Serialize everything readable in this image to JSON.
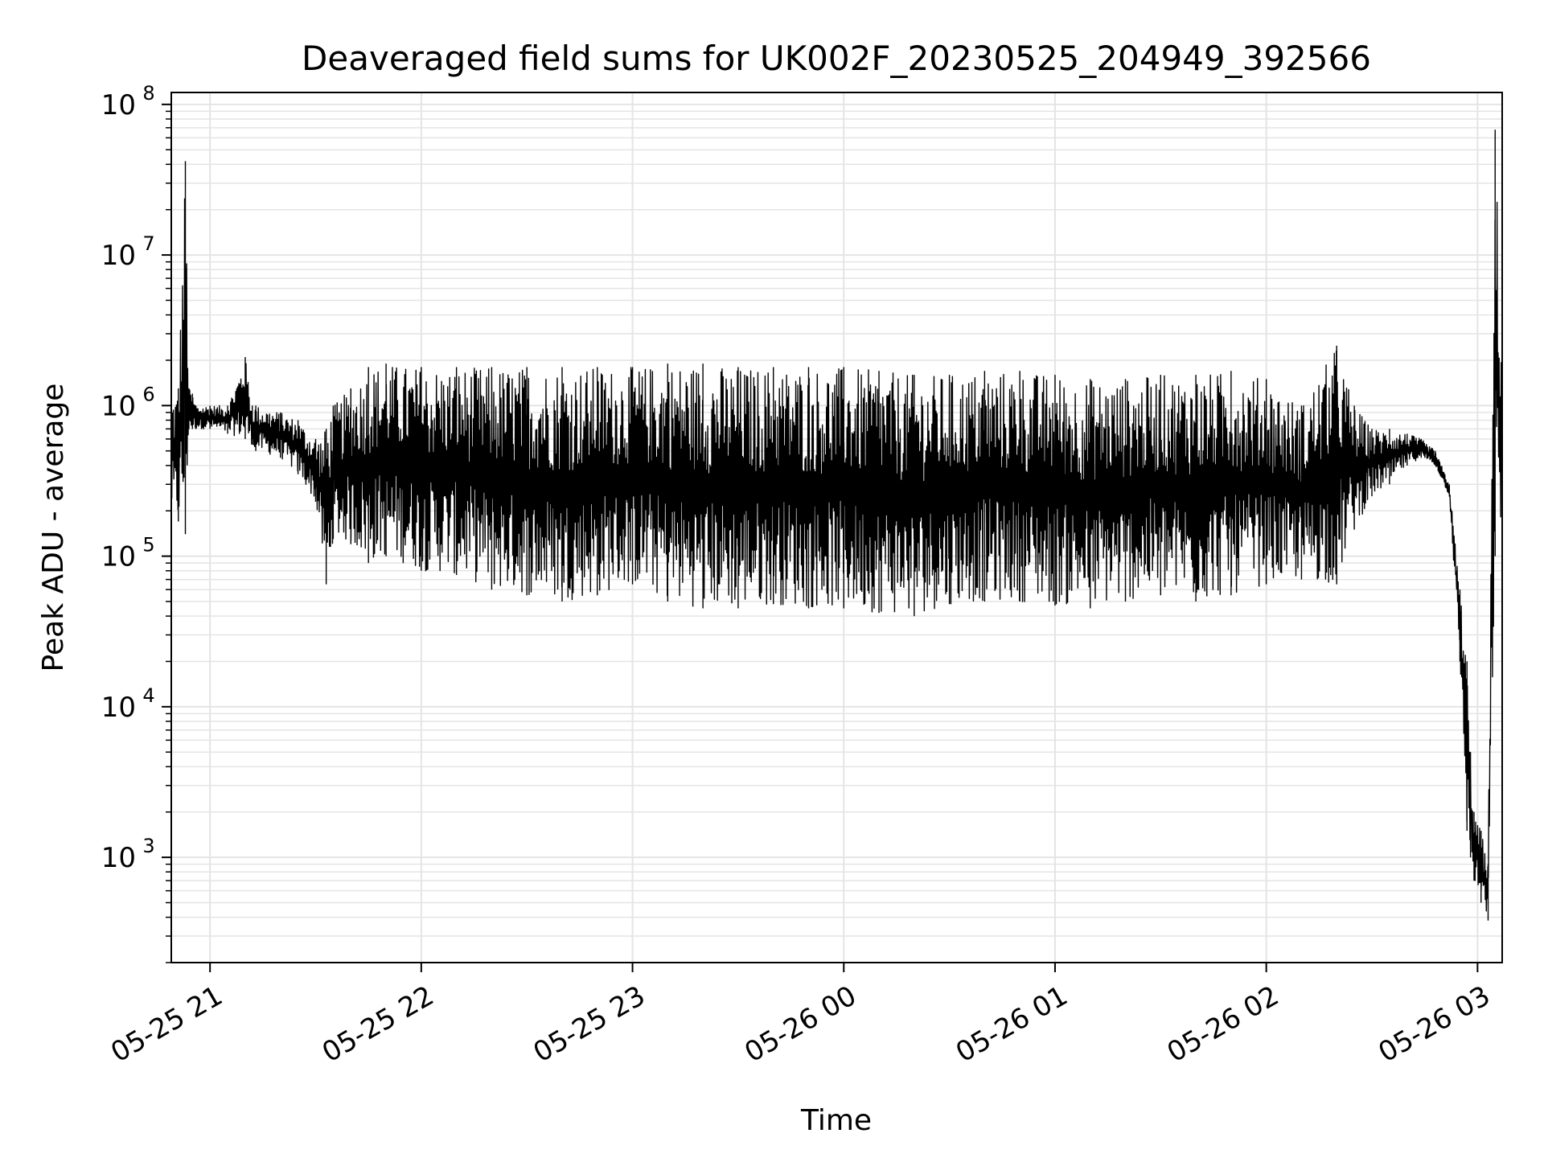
{
  "chart_data": {
    "type": "line",
    "title": "Deaveraged field sums for UK002F_20230525_204949_392566",
    "xlabel": "Time",
    "ylabel": "Peak ADU - average",
    "yscale": "log",
    "ylim": [
      200,
      120000000
    ],
    "xlim": [
      "2023-05-25 20:49",
      "2023-05-26 03:07"
    ],
    "grid": true,
    "legend": "none",
    "line_color": "#000000",
    "grid_color": "#e4e4e4",
    "x_ticks": [
      {
        "time": "2023-05-25 21:00",
        "label": "05-25 21"
      },
      {
        "time": "2023-05-25 22:00",
        "label": "05-25 22"
      },
      {
        "time": "2023-05-25 23:00",
        "label": "05-25 23"
      },
      {
        "time": "2023-05-26 00:00",
        "label": "05-26 00"
      },
      {
        "time": "2023-05-26 01:00",
        "label": "05-26 01"
      },
      {
        "time": "2023-05-26 02:00",
        "label": "05-26 02"
      },
      {
        "time": "2023-05-26 03:00",
        "label": "05-26 03"
      }
    ],
    "y_ticks": [
      {
        "value": 1000,
        "base": "10",
        "exp": "3"
      },
      {
        "value": 10000,
        "base": "10",
        "exp": "4"
      },
      {
        "value": 100000,
        "base": "10",
        "exp": "5"
      },
      {
        "value": 1000000,
        "base": "10",
        "exp": "6"
      },
      {
        "value": 10000000,
        "base": "10",
        "exp": "7"
      },
      {
        "value": 100000000,
        "base": "10",
        "exp": "8"
      }
    ],
    "series": [
      {
        "x": [
          "2023-05-25 20:49",
          "2023-05-25 20:51",
          "2023-05-25 20:53",
          "2023-05-25 20:54",
          "2023-05-25 20:55",
          "2023-05-25 20:56",
          "2023-05-25 21:00",
          "2023-05-25 21:05",
          "2023-05-25 21:10",
          "2023-05-25 21:12",
          "2023-05-25 21:13",
          "2023-05-25 21:20",
          "2023-05-25 21:25",
          "2023-05-25 21:30",
          "2023-05-25 21:33",
          "2023-05-25 21:35",
          "2023-05-25 21:40",
          "2023-05-25 21:45",
          "2023-05-25 21:50",
          "2023-05-25 22:00",
          "2023-05-25 22:10",
          "2023-05-25 22:20",
          "2023-05-25 22:30",
          "2023-05-25 22:40",
          "2023-05-25 22:50",
          "2023-05-25 23:00",
          "2023-05-25 23:10",
          "2023-05-25 23:20",
          "2023-05-25 23:30",
          "2023-05-25 23:40",
          "2023-05-25 23:50",
          "2023-05-26 00:00",
          "2023-05-26 00:10",
          "2023-05-26 00:20",
          "2023-05-26 00:30",
          "2023-05-26 00:40",
          "2023-05-26 00:50",
          "2023-05-26 01:00",
          "2023-05-26 01:10",
          "2023-05-26 01:20",
          "2023-05-26 01:30",
          "2023-05-26 01:40",
          "2023-05-26 01:50",
          "2023-05-26 02:00",
          "2023-05-26 02:10",
          "2023-05-26 02:20",
          "2023-05-26 02:25",
          "2023-05-26 02:30",
          "2023-05-26 02:35",
          "2023-05-26 02:40",
          "2023-05-26 02:44",
          "2023-05-26 02:48",
          "2023-05-26 02:52",
          "2023-05-26 02:55",
          "2023-05-26 02:57",
          "2023-05-26 02:58",
          "2023-05-26 02:59",
          "2023-05-26 03:01",
          "2023-05-26 03:03",
          "2023-05-26 03:05",
          "2023-05-26 03:07"
        ],
        "hi": [
          1200000,
          1300000,
          42000000,
          1300000,
          1200000,
          1000000,
          1000000,
          1000000,
          2100000,
          1000000,
          1000000,
          900000,
          800000,
          600000,
          700000,
          1000000,
          1300000,
          1800000,
          1900000,
          1800000,
          1800000,
          1800000,
          1800000,
          1800000,
          1800000,
          1800000,
          1900000,
          1900000,
          1800000,
          1800000,
          1800000,
          1800000,
          1700000,
          1600000,
          1600000,
          1700000,
          1700000,
          1600000,
          1500000,
          1500000,
          1600000,
          1600000,
          1700000,
          1500000,
          1000000,
          2500000,
          1000000,
          700000,
          700000,
          650000,
          600000,
          500000,
          300000,
          60000,
          20000,
          5000,
          2000,
          1500,
          900,
          68000000,
          1700000
        ],
        "lo": [
          190000,
          170000,
          140000,
          700000,
          700000,
          700000,
          700000,
          650000,
          600000,
          550000,
          500000,
          450000,
          350000,
          230000,
          65000,
          130000,
          120000,
          90000,
          100000,
          80000,
          75000,
          60000,
          55000,
          50000,
          55000,
          65000,
          50000,
          45000,
          45000,
          48000,
          45000,
          45000,
          42000,
          40000,
          48000,
          50000,
          50000,
          47000,
          45000,
          50000,
          55000,
          50000,
          55000,
          65000,
          70000,
          65000,
          150000,
          250000,
          300000,
          400000,
          450000,
          400000,
          250000,
          20000,
          1500,
          1000,
          700,
          500,
          380,
          100000,
          170000
        ]
      }
    ]
  }
}
